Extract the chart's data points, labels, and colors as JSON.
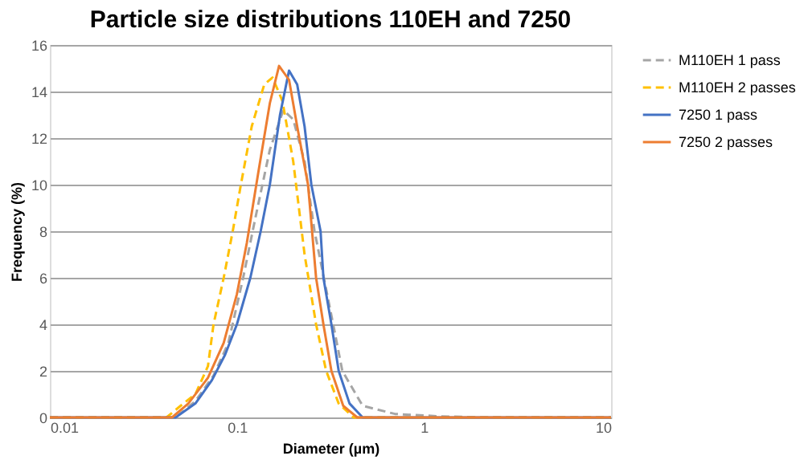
{
  "chart_data": {
    "type": "line",
    "title": "Particle size distributions 110EH and 7250",
    "xlabel": "Diameter (µm)",
    "ylabel": "Frequency (%)",
    "log": "x",
    "xlim": [
      0.01,
      10
    ],
    "xticks": [
      0.01,
      0.1,
      1,
      10
    ],
    "ylim": [
      0,
      16
    ],
    "yticks": [
      0,
      2,
      4,
      6,
      8,
      10,
      12,
      14,
      16
    ],
    "grid": "y",
    "legend": "right",
    "marker": "none",
    "series": [
      {
        "name": "M110EH 1 pass",
        "color": "#a5a5a5",
        "line_style": "dashed",
        "x": [
          0.01,
          0.047,
          0.06,
          0.075,
          0.09,
          0.108,
          0.125,
          0.15,
          0.177,
          0.2,
          0.23,
          0.26,
          0.3,
          0.327,
          0.366,
          0.47,
          0.7,
          1.2,
          2,
          10
        ],
        "values": [
          0,
          0,
          0.7,
          1.8,
          3.2,
          6,
          8.5,
          11.5,
          13.2,
          12.8,
          11,
          8,
          5.5,
          4,
          2,
          0.5,
          0.15,
          0.05,
          0,
          0
        ]
      },
      {
        "name": "M110EH 2 passes",
        "color": "#ffc000",
        "line_style": "dashed",
        "x": [
          0.01,
          0.042,
          0.05,
          0.06,
          0.07,
          0.075,
          0.085,
          0.095,
          0.105,
          0.12,
          0.14,
          0.155,
          0.175,
          0.2,
          0.23,
          0.265,
          0.3,
          0.35,
          0.42,
          10
        ],
        "values": [
          0,
          0,
          0.5,
          1,
          2.2,
          4,
          6,
          8,
          10,
          12.5,
          14.3,
          14.6,
          13.6,
          11,
          7,
          4,
          2,
          0.6,
          0,
          0
        ]
      },
      {
        "name": "7250 1 pass",
        "color": "#4472c4",
        "line_style": "solid",
        "x": [
          0.01,
          0.047,
          0.06,
          0.0735,
          0.0865,
          0.1,
          0.118,
          0.134,
          0.15,
          0.17,
          0.19,
          0.21,
          0.23,
          0.25,
          0.28,
          0.29,
          0.32,
          0.35,
          0.4,
          0.47,
          10
        ],
        "values": [
          0,
          0,
          0.6,
          1.6,
          2.7,
          4,
          6,
          8,
          10,
          13,
          14.9,
          14.3,
          12.5,
          10,
          8,
          6,
          4,
          2,
          0.6,
          0,
          0
        ]
      },
      {
        "name": "7250 2 passes",
        "color": "#ed7d31",
        "line_style": "solid",
        "x": [
          0.01,
          0.045,
          0.055,
          0.07,
          0.085,
          0.1,
          0.113,
          0.13,
          0.15,
          0.168,
          0.19,
          0.21,
          0.24,
          0.265,
          0.29,
          0.32,
          0.37,
          0.44,
          10
        ],
        "values": [
          0,
          0,
          0.6,
          1.7,
          3.2,
          5.3,
          7.5,
          10.5,
          13.5,
          15.1,
          14.5,
          12.5,
          10,
          6,
          4,
          2,
          0.5,
          0,
          0
        ]
      }
    ]
  }
}
